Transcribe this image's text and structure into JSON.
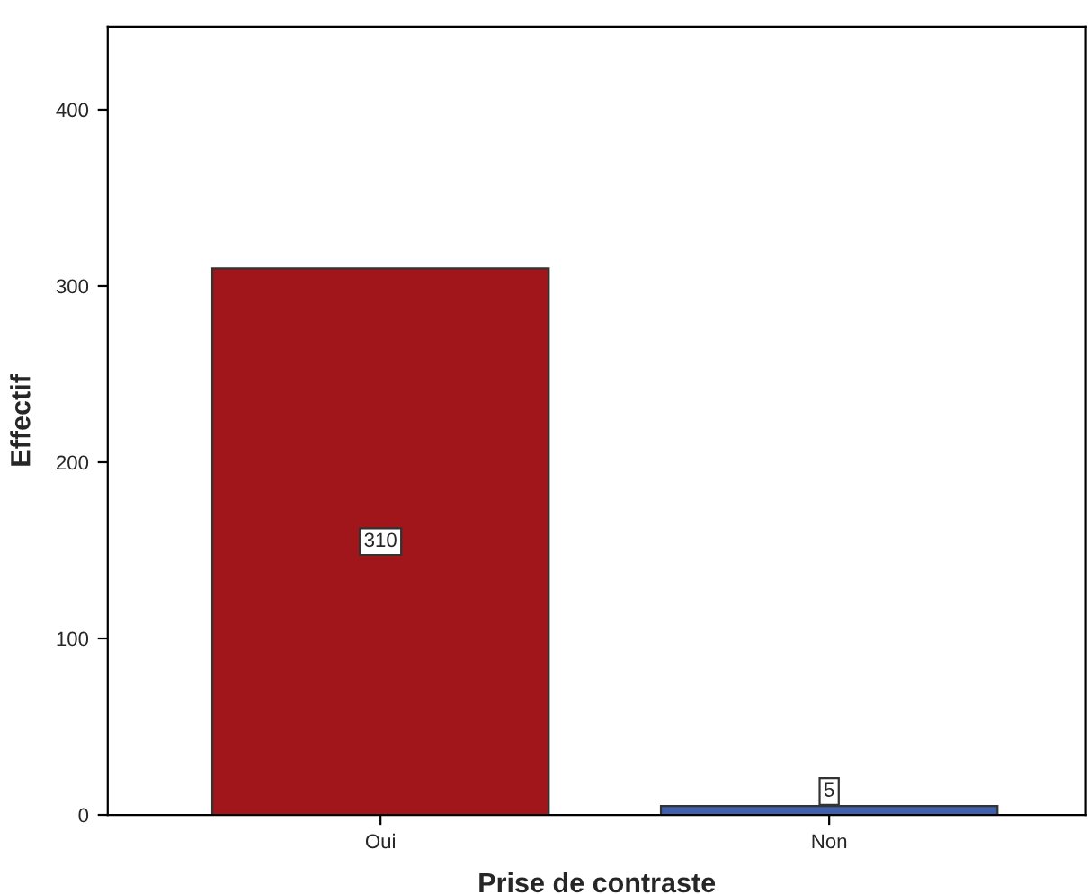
{
  "chart_data": {
    "type": "bar",
    "xlabel": "Prise de contraste",
    "ylabel": "Effectif",
    "categories": [
      "Oui",
      "Non"
    ],
    "values": [
      310,
      5
    ],
    "colors": [
      "#a0161a",
      "#3f5fad"
    ],
    "ylim": [
      0,
      447
    ],
    "yticks": [
      0,
      100,
      200,
      300,
      400
    ],
    "data_labels": true,
    "grid": false,
    "legend": false
  }
}
